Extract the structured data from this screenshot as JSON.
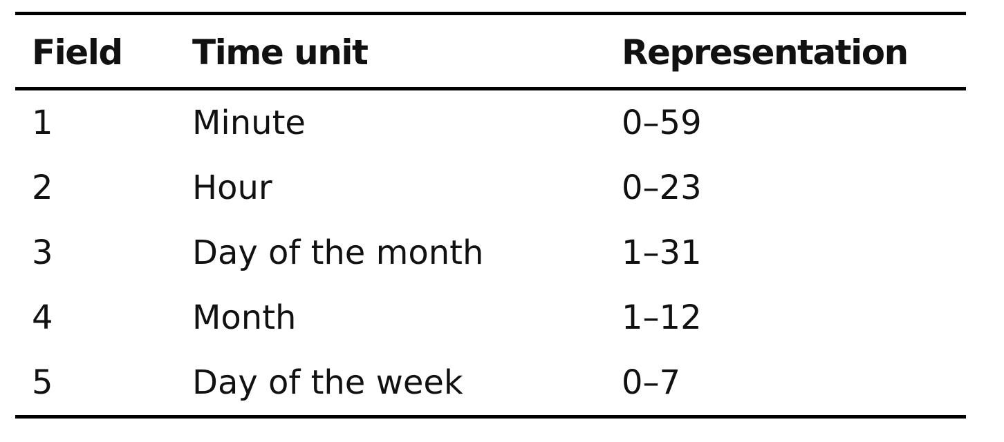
{
  "table": {
    "headers": [
      "Field",
      "Time unit",
      "Representation"
    ],
    "rows": [
      [
        "1",
        "Minute",
        "0–59"
      ],
      [
        "2",
        "Hour",
        "0–23"
      ],
      [
        "3",
        "Day of the month",
        "1–31"
      ],
      [
        "4",
        "Month",
        "1–12"
      ],
      [
        "5",
        "Day of the week",
        "0–7"
      ]
    ]
  }
}
